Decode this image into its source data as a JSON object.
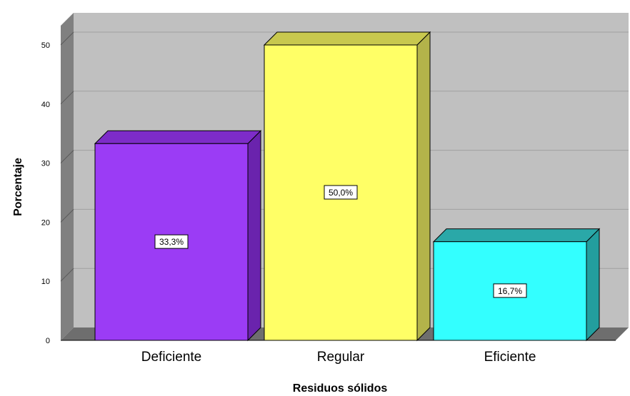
{
  "chart_data": {
    "type": "bar",
    "categories": [
      "Deficiente",
      "Regular",
      "Eficiente"
    ],
    "values": [
      33.3,
      50.0,
      16.7
    ],
    "data_labels": [
      "33,3%",
      "50,0%",
      "16,7%"
    ],
    "colors": [
      "#9b3cf5",
      "#ffff66",
      "#33ffff"
    ],
    "side_colors": [
      "#6a23ad",
      "#b3b34a",
      "#239e9e"
    ],
    "top_colors": [
      "#7d2cc8",
      "#c8c84e",
      "#2aa8a8"
    ],
    "xlabel": "Residuos sólidos",
    "ylabel": "Porcentaje",
    "ylim": [
      0,
      50
    ],
    "yticks": [
      "0",
      "10",
      "20",
      "30",
      "40",
      "50"
    ],
    "grid": true,
    "legend": "none",
    "style": "3d",
    "plot_background": "#c0c0c0"
  }
}
